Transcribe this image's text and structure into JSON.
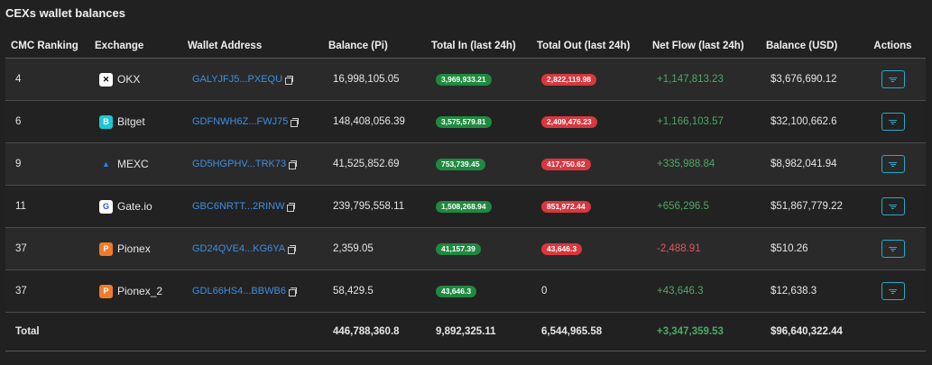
{
  "page": {
    "title": "CEXs wallet balances"
  },
  "columns": [
    "CMC Ranking",
    "Exchange",
    "Wallet Address",
    "Balance (Pi)",
    "Total In (last 24h)",
    "Total Out (last 24h)",
    "Net Flow (last 24h)",
    "Balance (USD)",
    "Actions"
  ],
  "rows": [
    {
      "rank": "4",
      "exchange": "OKX",
      "logo_char": "✕",
      "logo_bg": "#ffffff",
      "logo_fg": "#000000",
      "address": "GALYJFJ5...PXEQU",
      "balance_pi": "16,998,105.05",
      "total_in": "3,969,933.21",
      "total_out": "2,822,119.98",
      "net_flow": "+1,147,813.23",
      "net_sign": "pos",
      "balance_usd": "$3,676,690.12"
    },
    {
      "rank": "6",
      "exchange": "Bitget",
      "logo_char": "B",
      "logo_bg": "#1fc7d4",
      "logo_fg": "#ffffff",
      "address": "GDFNWH6Z...FWJ75",
      "balance_pi": "148,408,056.39",
      "total_in": "3,575,579.81",
      "total_out": "2,409,476.23",
      "net_flow": "+1,166,103.57",
      "net_sign": "pos",
      "balance_usd": "$32,100,662.6"
    },
    {
      "rank": "9",
      "exchange": "MEXC",
      "logo_char": "▲",
      "logo_bg": "transparent",
      "logo_fg": "#2f80ed",
      "address": "GD5HGPHV...TRK73",
      "balance_pi": "41,525,852.69",
      "total_in": "753,739.45",
      "total_out": "417,750.62",
      "net_flow": "+335,988.84",
      "net_sign": "pos",
      "balance_usd": "$8,982,041.94"
    },
    {
      "rank": "11",
      "exchange": "Gate.io",
      "logo_char": "G",
      "logo_bg": "#ffffff",
      "logo_fg": "#2354e6",
      "address": "GBC6NRTT...2RINW",
      "balance_pi": "239,795,558.11",
      "total_in": "1,508,268.94",
      "total_out": "851,972.44",
      "net_flow": "+656,296.5",
      "net_sign": "pos",
      "balance_usd": "$51,867,779.22"
    },
    {
      "rank": "37",
      "exchange": "Pionex",
      "logo_char": "P",
      "logo_bg": "#f07c2a",
      "logo_fg": "#ffffff",
      "address": "GD24QVE4...KG6YA",
      "balance_pi": "2,359.05",
      "total_in": "41,157.39",
      "total_out": "43,646.3",
      "net_flow": "-2,488.91",
      "net_sign": "neg",
      "balance_usd": "$510.26"
    },
    {
      "rank": "37",
      "exchange": "Pionex_2",
      "logo_char": "P",
      "logo_bg": "#f07c2a",
      "logo_fg": "#ffffff",
      "address": "GDL66HS4...BBWB6",
      "balance_pi": "58,429.5",
      "total_in": "43,646.3",
      "total_out": "0",
      "net_flow": "+43,646.3",
      "net_sign": "pos",
      "balance_usd": "$12,638.3"
    }
  ],
  "total": {
    "label": "Total",
    "balance_pi": "446,788,360.8",
    "total_in": "9,892,325.11",
    "total_out": "6,544,965.58",
    "net_flow": "+3,347,359.53",
    "balance_usd": "$96,640,322.44"
  },
  "icons": {
    "copy": "copy-icon",
    "filter": "filter-icon"
  },
  "colors": {
    "pill_in": "#1f8a3f",
    "pill_out": "#d9373f",
    "positive": "#4fa868",
    "negative": "#e0575c",
    "link": "#3d8fe0",
    "accent": "#2aa8c4"
  }
}
